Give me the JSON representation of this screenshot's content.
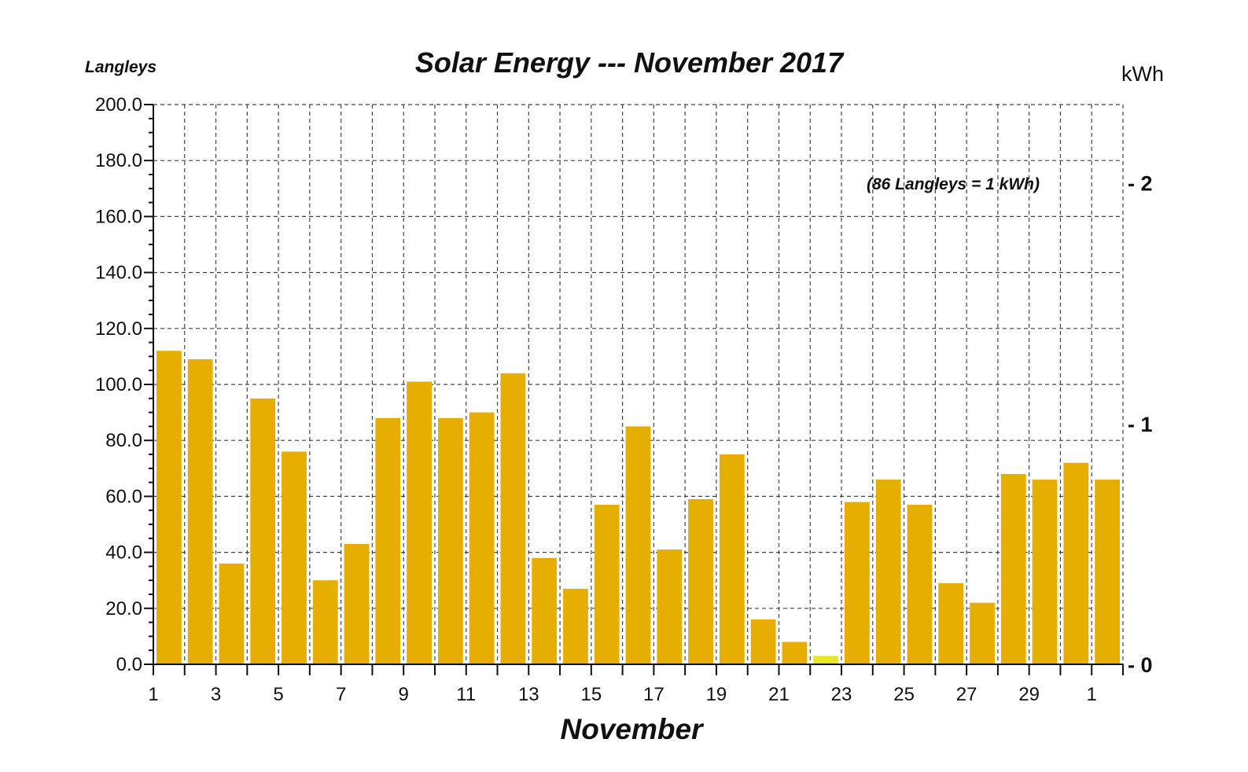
{
  "chart_data": {
    "type": "bar",
    "title": "Solar Energy --- November 2017",
    "xlabel": "November",
    "ylabel": "Langleys",
    "ylabel_right": "kWh",
    "note": "(86 Langleys = 1 kWh)",
    "ylim": [
      0,
      200
    ],
    "y_ticks": [
      "0.0",
      "20.0",
      "40.0",
      "60.0",
      "80.0",
      "100.0",
      "120.0",
      "140.0",
      "160.0",
      "180.0",
      "200.0"
    ],
    "right_ticks": [
      {
        "value": 0,
        "label": "- 0"
      },
      {
        "value": 1,
        "label": "- 1"
      },
      {
        "value": 2,
        "label": "- 2"
      }
    ],
    "langleys_per_kwh": 86,
    "x_tick_labels": [
      "1",
      "3",
      "5",
      "7",
      "9",
      "11",
      "13",
      "15",
      "17",
      "19",
      "21",
      "23",
      "25",
      "27",
      "29",
      "1"
    ],
    "categories": [
      "1",
      "2",
      "3",
      "4",
      "5",
      "6",
      "7",
      "8",
      "9",
      "10",
      "11",
      "12",
      "13",
      "14",
      "15",
      "16",
      "17",
      "18",
      "19",
      "20",
      "21",
      "22",
      "23",
      "24",
      "25",
      "26",
      "27",
      "28",
      "29",
      "30",
      "1"
    ],
    "values": [
      112,
      109,
      36,
      95,
      76,
      30,
      43,
      88,
      101,
      88,
      90,
      104,
      38,
      27,
      57,
      85,
      41,
      59,
      75,
      16,
      8,
      3,
      58,
      66,
      57,
      29,
      22,
      68,
      66,
      72,
      66
    ],
    "bar_color": "#E6AE00",
    "highlight_color": "#E8E820",
    "highlight_index": 21,
    "grid": true
  }
}
